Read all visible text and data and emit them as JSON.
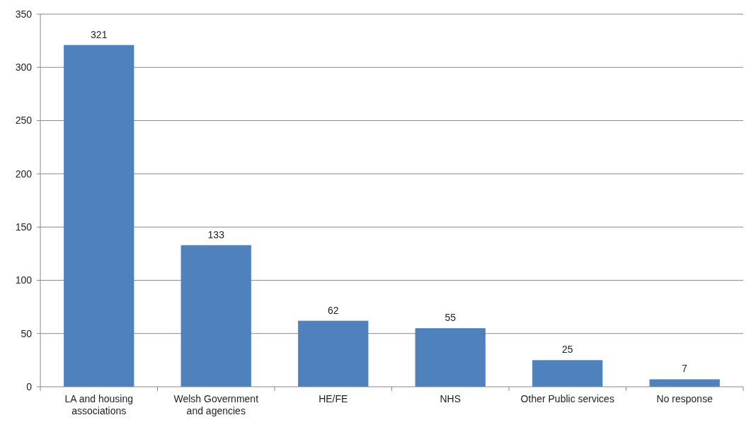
{
  "chart_data": {
    "type": "bar",
    "categories": [
      "LA and housing associations",
      "Welsh Government and agencies",
      "HE/FE",
      "NHS",
      "Other Public services",
      "No response"
    ],
    "values": [
      321,
      133,
      62,
      55,
      25,
      7
    ],
    "color": "#4f81bd",
    "ylim": [
      0,
      350
    ],
    "yticks": [
      0,
      50,
      100,
      150,
      200,
      250,
      300,
      350
    ],
    "grid": "y",
    "data_labels": true
  }
}
